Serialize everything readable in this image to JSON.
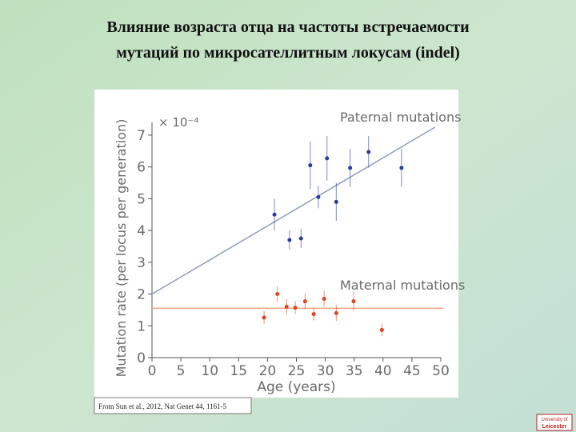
{
  "slide": {
    "title": [
      "Влияние возраста отца на частоты встречаемости",
      "мутаций по микросателлитным локусам (indel)"
    ],
    "citation": "From Sun et al., 2012, Nat Genet 44, 1161-5",
    "logo": [
      "University of",
      "Leicester"
    ]
  },
  "chart_data": {
    "type": "scatter",
    "x_label": "Age (years)",
    "y_label": "Mutation rate (per locus per generation)",
    "y_multiplier": "× 10⁻⁴",
    "xlim": [
      0,
      50
    ],
    "xticks": [
      0,
      5,
      10,
      15,
      20,
      25,
      30,
      35,
      40,
      45,
      50
    ],
    "ylim": [
      0,
      7.4
    ],
    "yticks": [
      0,
      1,
      2,
      3,
      4,
      5,
      6,
      7
    ],
    "series": [
      {
        "name": "Paternal mutations",
        "color": "#2b3a9c",
        "fit_color": "#8f9cba",
        "x": [
          21.2,
          23.8,
          25.8,
          27.4,
          28.8,
          30.3,
          31.9,
          34.3,
          37.5,
          43.2
        ],
        "values": [
          4.5,
          3.7,
          3.75,
          6.05,
          5.05,
          6.27,
          4.9,
          5.97,
          6.47,
          5.97
        ],
        "errors": [
          0.5,
          0.3,
          0.3,
          0.75,
          0.35,
          0.7,
          0.6,
          0.6,
          0.5,
          0.6
        ],
        "fit": {
          "x": [
            0,
            49
          ],
          "y": [
            2.0,
            7.25
          ]
        }
      },
      {
        "name": "Maternal mutations",
        "color": "#e0441f",
        "fit_color": "#f2a584",
        "x": [
          19.4,
          21.7,
          23.3,
          24.8,
          26.5,
          28.0,
          29.8,
          31.9,
          34.9,
          39.8
        ],
        "values": [
          1.26,
          2.0,
          1.6,
          1.57,
          1.77,
          1.37,
          1.85,
          1.4,
          1.77,
          0.87
        ],
        "errors": [
          0.2,
          0.25,
          0.25,
          0.2,
          0.25,
          0.2,
          0.25,
          0.25,
          0.3,
          0.2
        ],
        "fit": {
          "x": [
            0,
            50.5
          ],
          "y": [
            1.55,
            1.55
          ]
        }
      }
    ]
  }
}
